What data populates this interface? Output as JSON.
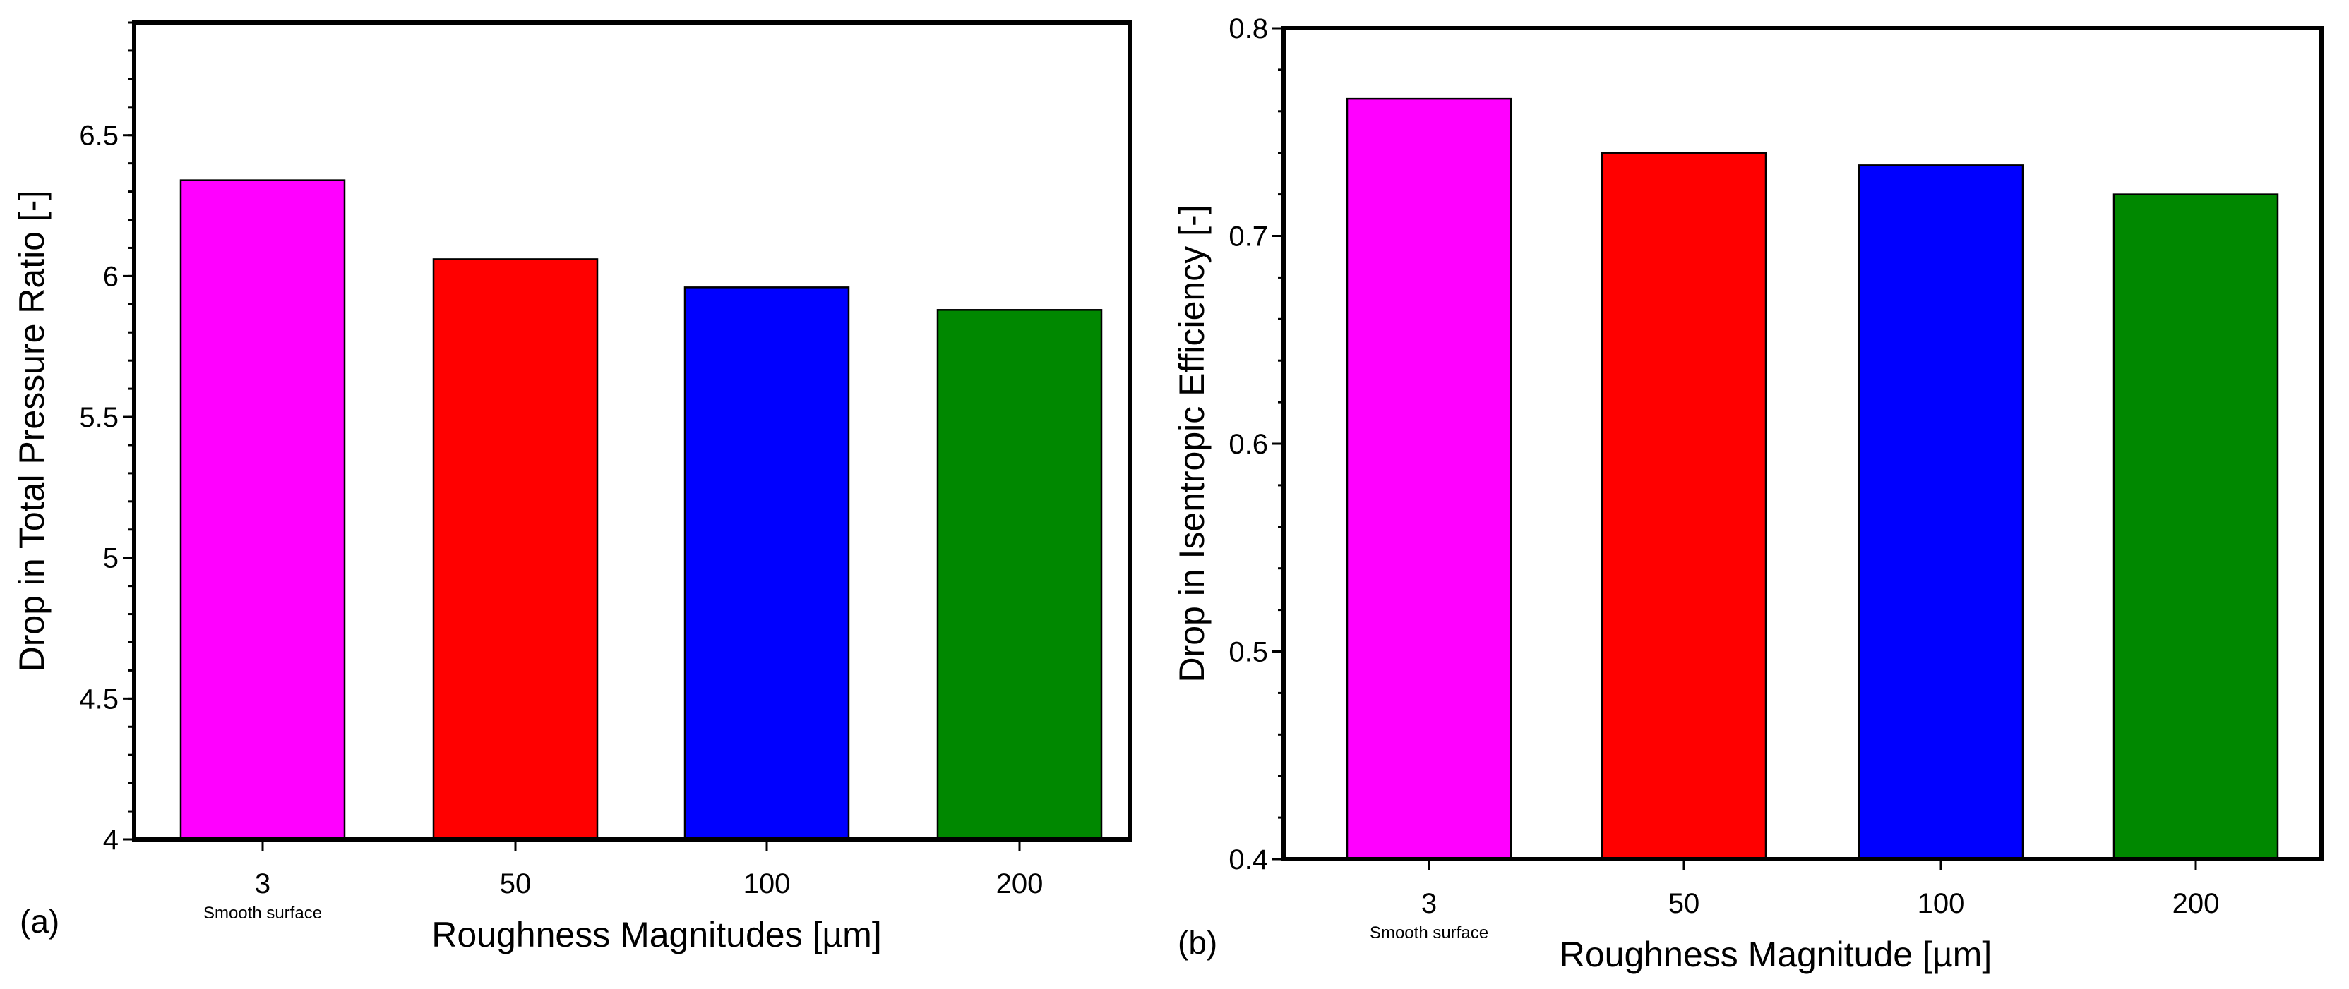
{
  "chart_data": [
    {
      "type": "bar",
      "panel_label": "(a)",
      "categories": [
        "3",
        "50",
        "100",
        "200"
      ],
      "category_sublabels": [
        "Smooth surface",
        "",
        "",
        ""
      ],
      "values": [
        6.34,
        6.06,
        5.96,
        5.88
      ],
      "colors": [
        "#ff00ff",
        "#ff0000",
        "#0000ff",
        "#008800"
      ],
      "xlabel": "Roughness Magnitudes [µm]",
      "ylabel": "Drop in Total Pressure Ratio [-]",
      "ylim": [
        4,
        6.9
      ],
      "yticks": [
        4,
        4.5,
        5,
        5.5,
        6,
        6.5
      ],
      "ytick_labels": [
        "4",
        "4.5",
        "5",
        "5.5",
        "6",
        "6.5"
      ]
    },
    {
      "type": "bar",
      "panel_label": "(b)",
      "categories": [
        "3",
        "50",
        "100",
        "200"
      ],
      "category_sublabels": [
        "Smooth surface",
        "",
        "",
        ""
      ],
      "values": [
        0.766,
        0.74,
        0.734,
        0.72
      ],
      "colors": [
        "#ff00ff",
        "#ff0000",
        "#0000ff",
        "#008800"
      ],
      "xlabel": "Roughness Magnitude [µm]",
      "ylabel": "Drop in Isentropic Efficiency [-]",
      "ylim": [
        0.4,
        0.8
      ],
      "yticks": [
        0.4,
        0.5,
        0.6,
        0.7,
        0.8
      ],
      "ytick_labels": [
        "0.4",
        "0.5",
        "0.6",
        "0.7",
        "0.8"
      ]
    }
  ]
}
